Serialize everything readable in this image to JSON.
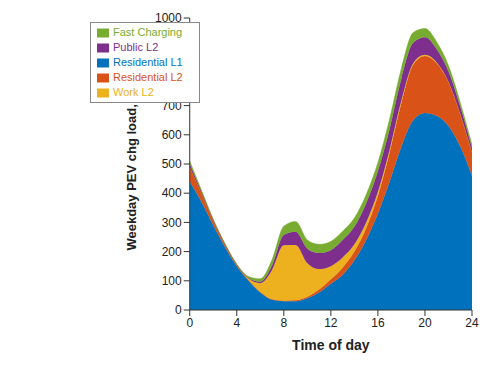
{
  "chart_data": {
    "type": "area",
    "stacked": true,
    "x_label": "Time of day",
    "y_label": "Weekday PEV chg load, MW",
    "x": [
      0,
      1,
      2,
      3,
      4,
      5,
      6,
      7,
      8,
      9,
      10,
      11,
      12,
      13,
      14,
      15,
      16,
      17,
      18,
      19,
      20,
      21,
      22,
      23,
      24
    ],
    "xlim": [
      0,
      24
    ],
    "xticks": [
      0,
      4,
      8,
      12,
      16,
      20,
      24
    ],
    "ylim": [
      0,
      1000
    ],
    "yticks": [
      0,
      100,
      200,
      300,
      400,
      500,
      600,
      700,
      800,
      900,
      1000
    ],
    "grid": false,
    "legend": "upper left",
    "series": [
      {
        "name": "Residential L1",
        "color": "#0072BD",
        "values": [
          440,
          370,
          290,
          215,
          150,
          100,
          60,
          35,
          30,
          30,
          40,
          60,
          90,
          120,
          170,
          240,
          330,
          440,
          560,
          650,
          675,
          665,
          630,
          560,
          460
        ]
      },
      {
        "name": "Residential L2",
        "color": "#D95319",
        "values": [
          50,
          30,
          15,
          8,
          4,
          3,
          2,
          2,
          2,
          3,
          5,
          10,
          15,
          25,
          30,
          40,
          60,
          100,
          150,
          190,
          195,
          180,
          150,
          110,
          80
        ]
      },
      {
        "name": "Work L2",
        "color": "#EDB120",
        "values": [
          0,
          0,
          0,
          0,
          0,
          5,
          30,
          100,
          190,
          190,
          115,
          70,
          45,
          35,
          25,
          20,
          15,
          10,
          8,
          5,
          4,
          3,
          2,
          1,
          0
        ]
      },
      {
        "name": "Public L2",
        "color": "#7E2F8E",
        "values": [
          10,
          5,
          3,
          2,
          1,
          2,
          5,
          15,
          35,
          45,
          50,
          55,
          55,
          60,
          60,
          65,
          70,
          70,
          75,
          70,
          60,
          45,
          35,
          25,
          15
        ]
      },
      {
        "name": "Fast Charging",
        "color": "#77AC30",
        "values": [
          10,
          5,
          3,
          2,
          2,
          5,
          10,
          20,
          30,
          35,
          30,
          30,
          30,
          30,
          30,
          30,
          30,
          35,
          35,
          35,
          30,
          25,
          20,
          15,
          10
        ]
      }
    ]
  }
}
